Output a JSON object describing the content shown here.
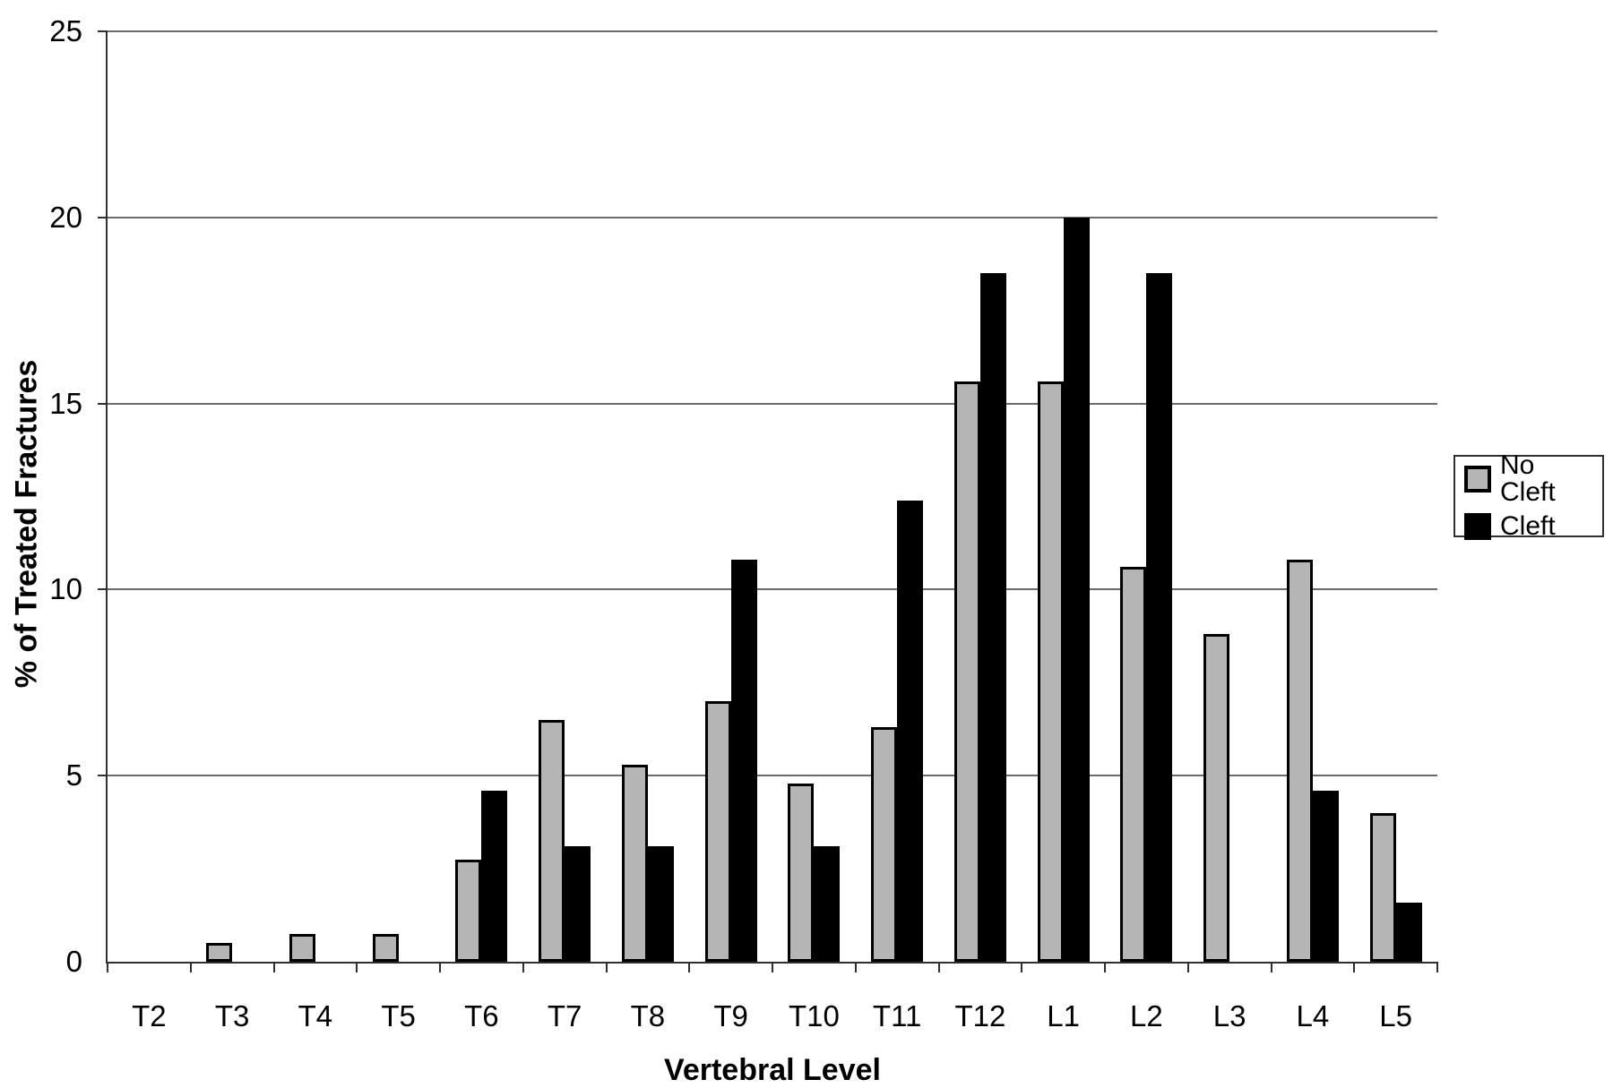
{
  "chart_data": {
    "type": "bar",
    "title": "",
    "xlabel": "Vertebral Level",
    "ylabel": "% of Treated Fractures",
    "categories": [
      "T2",
      "T3",
      "T4",
      "T5",
      "T6",
      "T7",
      "T8",
      "T9",
      "T10",
      "T11",
      "T12",
      "L1",
      "L2",
      "L3",
      "L4",
      "L5"
    ],
    "series": [
      {
        "name": "No Cleft",
        "color": "#b5b5b5",
        "values": [
          0,
          0.5,
          0.75,
          0.75,
          2.75,
          6.5,
          5.3,
          7.0,
          4.8,
          6.3,
          15.6,
          15.6,
          10.6,
          8.8,
          10.8,
          4.0
        ]
      },
      {
        "name": "Cleft",
        "color": "#000000",
        "values": [
          0,
          0,
          0,
          0,
          4.6,
          3.1,
          3.1,
          10.8,
          3.1,
          12.4,
          18.5,
          20.0,
          18.5,
          0,
          4.6,
          1.6
        ]
      }
    ],
    "ylim": [
      0,
      25
    ],
    "y_ticks": [
      "0",
      "5",
      "10",
      "15",
      "20",
      "25"
    ],
    "grid": true,
    "gridline_color": "#6a6a6a",
    "legend_position": "right"
  }
}
